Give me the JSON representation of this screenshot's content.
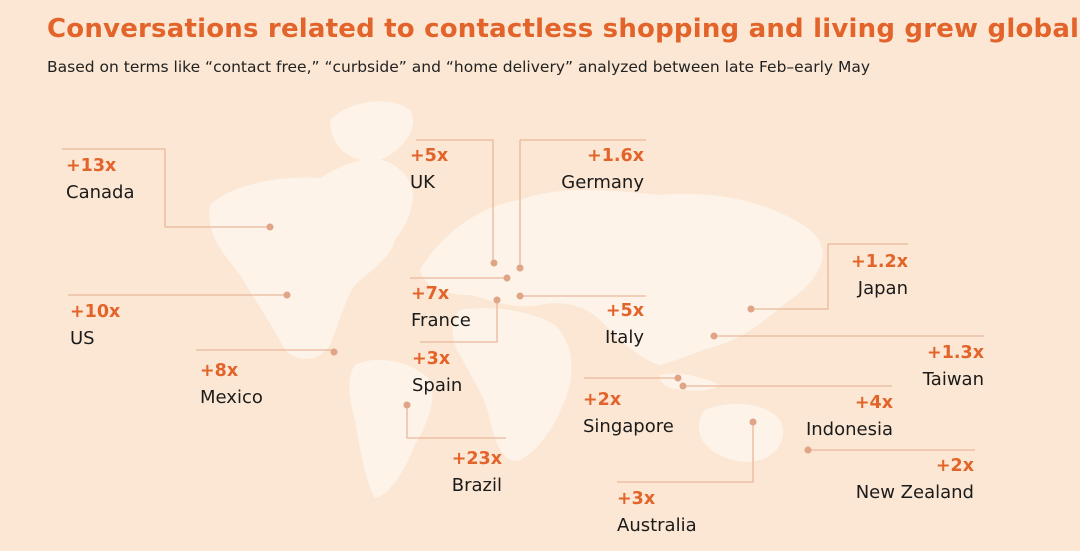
{
  "title": "Conversations related to contactless shopping and living grew globally",
  "subtitle": "Based on terms like “contact free,” “curbside” and “home delivery” analyzed between late Feb–early May",
  "colors": {
    "background": "#fbe7d3",
    "accent": "#e3642a",
    "continents": "#fdf3e9",
    "leader": "#e9b89a",
    "dot": "#e0a487"
  },
  "markers": [
    {
      "id": "canada",
      "value": "+13x",
      "country": "Canada"
    },
    {
      "id": "us",
      "value": "+10x",
      "country": "US"
    },
    {
      "id": "mexico",
      "value": "+8x",
      "country": "Mexico"
    },
    {
      "id": "uk",
      "value": "+5x",
      "country": "UK"
    },
    {
      "id": "germany",
      "value": "+1.6x",
      "country": "Germany"
    },
    {
      "id": "france",
      "value": "+7x",
      "country": "France"
    },
    {
      "id": "spain",
      "value": "+3x",
      "country": "Spain"
    },
    {
      "id": "italy",
      "value": "+5x",
      "country": "Italy"
    },
    {
      "id": "brazil",
      "value": "+23x",
      "country": "Brazil"
    },
    {
      "id": "japan",
      "value": "+1.2x",
      "country": "Japan"
    },
    {
      "id": "taiwan",
      "value": "+1.3x",
      "country": "Taiwan"
    },
    {
      "id": "singapore",
      "value": "+2x",
      "country": "Singapore"
    },
    {
      "id": "indonesia",
      "value": "+4x",
      "country": "Indonesia"
    },
    {
      "id": "new-zealand",
      "value": "+2x",
      "country": "New Zealand"
    },
    {
      "id": "australia",
      "value": "+3x",
      "country": "Australia"
    }
  ]
}
